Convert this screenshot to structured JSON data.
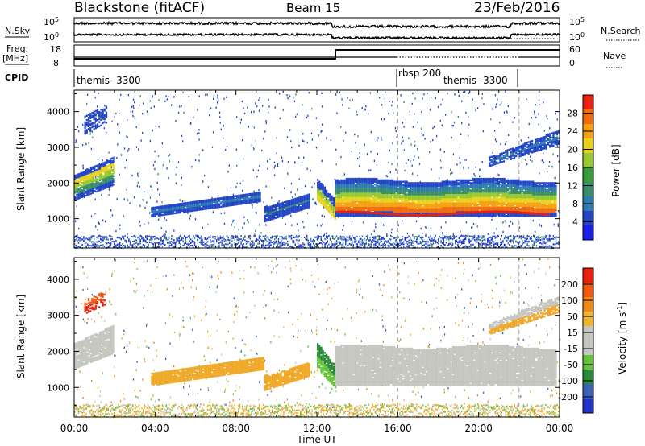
{
  "header": {
    "station": "Blackstone (fitACF)",
    "beam": "Beam 15",
    "date": "23/Feb/2016"
  },
  "strip_labels": {
    "nsky": "N.Sky",
    "nsearch": "N.Search",
    "freq": "Freq.",
    "freq_unit": "[MHz]",
    "nave": "Nave",
    "cpid": "CPID"
  },
  "strip_ticks": {
    "nsky_top": "10^5",
    "nsky_bottom": "10^0",
    "nsearch_top": "10^5",
    "nsearch_bottom": "10^0",
    "freq_top": "18",
    "freq_bottom": "8",
    "nave_top": "60",
    "nave_bottom": "0"
  },
  "cpid_labels": [
    "themis -3300",
    "rbsp 200",
    "themis -3300"
  ],
  "chart_data": [
    {
      "type": "heatmap",
      "panel": "power",
      "xlabel": "Time UT",
      "ylabel": "Slant Range [km]",
      "x_ticks": [
        "00:00",
        "04:00",
        "08:00",
        "12:00",
        "16:00",
        "20:00",
        "00:00"
      ],
      "x_range_hours": [
        0,
        24
      ],
      "y_ticks": [
        1000,
        2000,
        3000,
        4000
      ],
      "ylim": [
        180,
        4600
      ],
      "colorbar_label": "Power [dB]",
      "colorbar_ticks": [
        "4",
        "8",
        "12",
        "16",
        "20",
        "24",
        "28"
      ],
      "colorbar_colors": [
        "#1a20e8",
        "#2246c6",
        "#2f7bb0",
        "#3a8e6e",
        "#3b9a3a",
        "#96c832",
        "#e8d21e",
        "#f4a012",
        "#f06a0e",
        "#e8220e"
      ]
    },
    {
      "type": "heatmap",
      "panel": "velocity",
      "xlabel": "Time UT",
      "ylabel": "Slant Range [km]",
      "x_ticks": [
        "00:00",
        "04:00",
        "08:00",
        "12:00",
        "16:00",
        "20:00",
        "00:00"
      ],
      "x_range_hours": [
        0,
        24
      ],
      "y_ticks": [
        1000,
        2000,
        3000,
        4000
      ],
      "ylim": [
        180,
        4600
      ],
      "colorbar_label": "Velocity [m s-1]",
      "colorbar_ticks": [
        "200",
        "100",
        "50",
        "15",
        "-15",
        "-50",
        "-100",
        "-200"
      ],
      "colorbar_colors": [
        "#2034c8",
        "#3c62b4",
        "#2a8a3a",
        "#66c23a",
        "#c6c6c0",
        "#c6c6c0",
        "#f0b432",
        "#f08818",
        "#f05a10",
        "#e81e0e"
      ]
    }
  ],
  "time_axis_label": "Time UT",
  "power_label_main": "Power [dB]",
  "velocity_label_main": "Velocity [m s",
  "velocity_label_exp": "-1",
  "velocity_label_end": "]",
  "colors": {
    "grey_scatter": "#c6c6c0",
    "orange": "#f0a828",
    "blue_core": "#2232c8",
    "green": "#3c9a3a",
    "red": "#e8220e",
    "dashed": "#9a9a9a"
  }
}
